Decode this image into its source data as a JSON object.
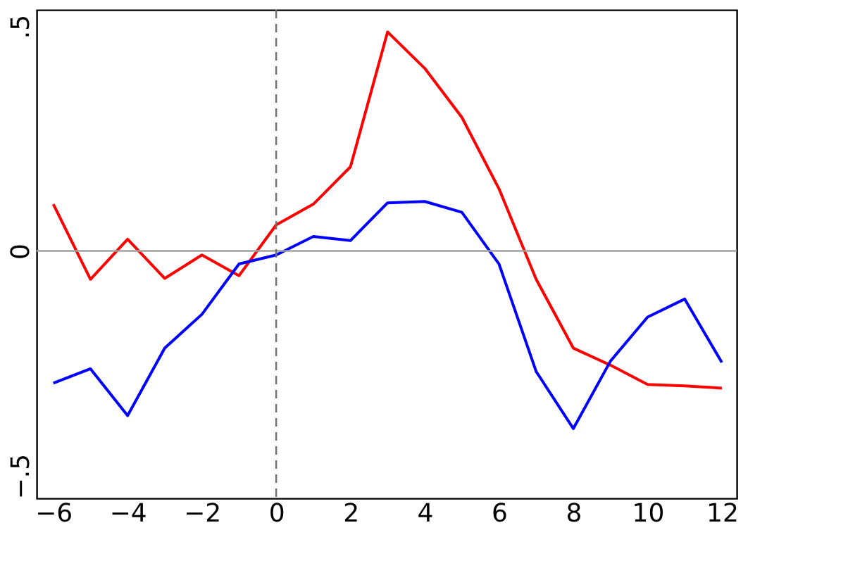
{
  "chart_data": {
    "type": "line",
    "x": [
      -6,
      -5,
      -4,
      -3,
      -2,
      -1,
      0,
      1,
      2,
      3,
      4,
      5,
      6,
      7,
      8,
      9,
      10,
      11,
      12
    ],
    "series": [
      {
        "color": "#ff0000",
        "values": [
          0.104,
          -0.063,
          0.026,
          -0.061,
          -0.009,
          -0.055,
          0.058,
          0.104,
          0.187,
          0.487,
          0.406,
          0.297,
          0.138,
          -0.063,
          -0.216,
          -0.254,
          -0.297,
          -0.3,
          -0.305
        ]
      },
      {
        "color": "#0000ff",
        "values": [
          -0.294,
          -0.262,
          -0.366,
          -0.216,
          -0.141,
          -0.029,
          -0.009,
          0.032,
          0.023,
          0.107,
          0.11,
          0.086,
          -0.029,
          -0.268,
          -0.395,
          -0.245,
          -0.147,
          -0.107,
          -0.248
        ]
      }
    ],
    "xlim": [
      -6.45,
      12.4
    ],
    "xticks": [
      -6,
      -4,
      -2,
      0,
      2,
      4,
      6,
      8,
      10,
      12
    ],
    "ylim": [
      -0.55,
      0.536
    ],
    "yticks": [
      {
        "value": -0.5,
        "label": "−.5"
      },
      {
        "value": 0,
        "label": "0"
      },
      {
        "value": 0.5,
        "label": ".5"
      }
    ],
    "ref_lines": [
      {
        "axis": "y",
        "value": 0,
        "color": "#a0a0a0",
        "line_style": "solid"
      },
      {
        "axis": "x",
        "value": 0,
        "color": "#707070",
        "line_style": "dashed"
      }
    ],
    "grid": false,
    "marker": "none",
    "line_style": "solid"
  }
}
